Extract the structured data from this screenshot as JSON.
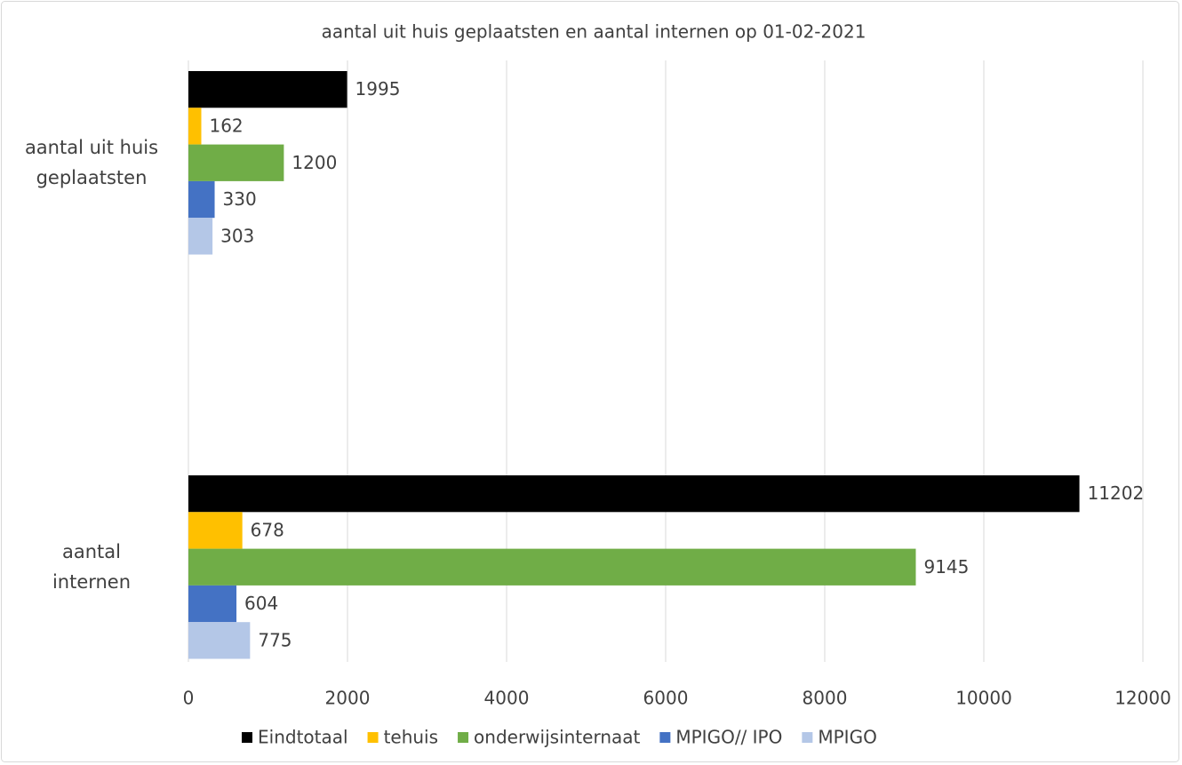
{
  "chart_data": {
    "type": "hbar",
    "title": "aantal uit huis geplaatsten en aantal internen op 01-02-2021",
    "categories": [
      "aantal uit huis geplaatsten",
      "aantal internen"
    ],
    "series": [
      {
        "name": "Eindtotaal",
        "color": "#000000",
        "values": [
          1995,
          11202
        ]
      },
      {
        "name": "tehuis",
        "color": "#FFC000",
        "values": [
          162,
          678
        ]
      },
      {
        "name": "onderwijsinternaat",
        "color": "#70AD47",
        "values": [
          1200,
          9145
        ]
      },
      {
        "name": "MPIGO// IPO",
        "color": "#4472C4",
        "values": [
          330,
          604
        ]
      },
      {
        "name": "MPIGO",
        "color": "#B4C7E7",
        "values": [
          303,
          775
        ]
      }
    ],
    "xlim": [
      0,
      12000
    ],
    "xticks": [
      0,
      2000,
      4000,
      6000,
      8000,
      10000,
      12000
    ],
    "grid": true,
    "legend": "bottom"
  }
}
